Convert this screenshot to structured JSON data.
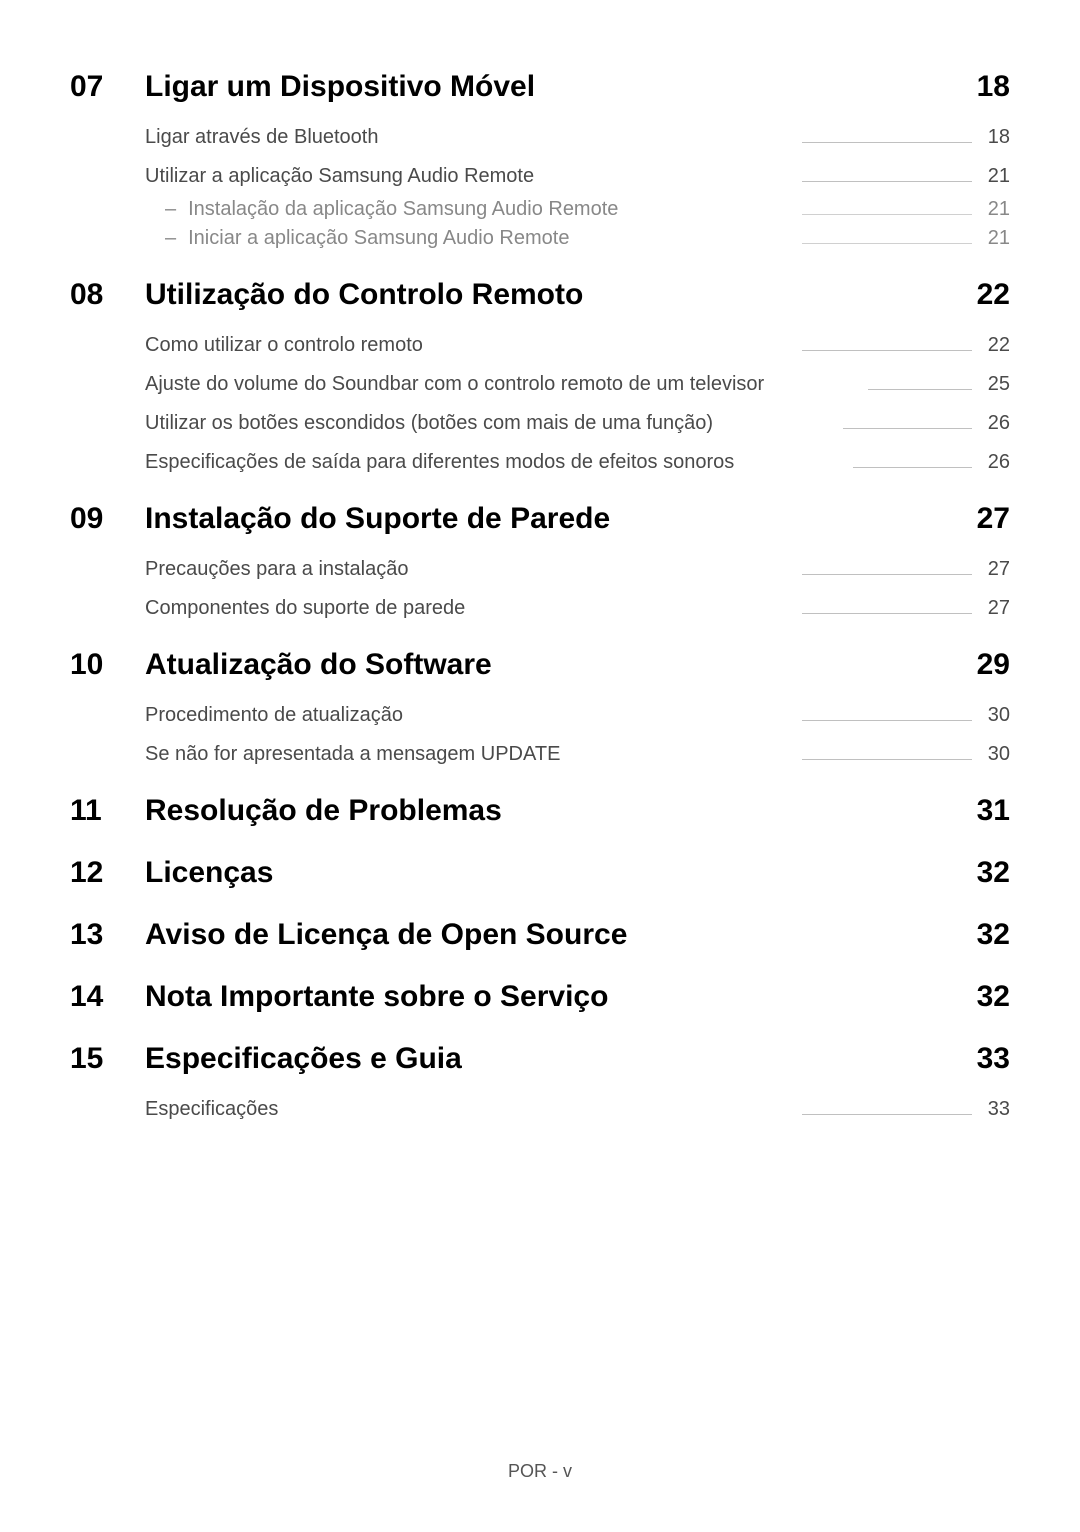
{
  "footer": "POR - v",
  "colors": {
    "background": "#ffffff",
    "text_main": "#000000",
    "text_sub": "#4a4a4a",
    "text_subsub": "#888888",
    "leader": "#c0c0c0"
  },
  "typography": {
    "section_fontsize": 30,
    "sub_fontsize": 20,
    "footer_fontsize": 18,
    "section_weight": 700
  },
  "sections": [
    {
      "number": "07",
      "title": "Ligar um Dispositivo Móvel",
      "page": "18",
      "subs": [
        {
          "type": "group",
          "items": [
            {
              "text": "Ligar através de Bluetooth",
              "page": "18",
              "level": 1
            }
          ]
        },
        {
          "type": "group",
          "items": [
            {
              "text": "Utilizar a aplicação Samsung Audio Remote",
              "page": "21",
              "level": 1
            },
            {
              "text": "Instalação da aplicação Samsung Audio Remote",
              "page": "21",
              "level": 2
            },
            {
              "text": "Iniciar a aplicação Samsung Audio Remote",
              "page": "21",
              "level": 2
            }
          ]
        }
      ]
    },
    {
      "number": "08",
      "title": "Utilização do Controlo Remoto",
      "page": "22",
      "subs": [
        {
          "type": "group",
          "items": [
            {
              "text": "Como utilizar o controlo remoto",
              "page": "22",
              "level": 1
            }
          ]
        },
        {
          "type": "group",
          "items": [
            {
              "text": "Ajuste do volume do Soundbar com o controlo remoto de um televisor",
              "page": "25",
              "level": 1
            }
          ]
        },
        {
          "type": "group",
          "items": [
            {
              "text": "Utilizar os botões escondidos (botões com mais de uma função)",
              "page": "26",
              "level": 1
            }
          ]
        },
        {
          "type": "group",
          "items": [
            {
              "text": "Especificações de saída para diferentes modos de efeitos sonoros",
              "page": "26",
              "level": 1
            }
          ]
        }
      ]
    },
    {
      "number": "09",
      "title": "Instalação do Suporte de Parede",
      "page": "27",
      "subs": [
        {
          "type": "group",
          "items": [
            {
              "text": "Precauções para a instalação",
              "page": "27",
              "level": 1
            }
          ]
        },
        {
          "type": "group",
          "items": [
            {
              "text": "Componentes do suporte de parede",
              "page": "27",
              "level": 1
            }
          ]
        }
      ]
    },
    {
      "number": "10",
      "title": "Atualização do Software",
      "page": "29",
      "subs": [
        {
          "type": "group",
          "items": [
            {
              "text": "Procedimento de atualização",
              "page": "30",
              "level": 1
            }
          ]
        },
        {
          "type": "group",
          "items": [
            {
              "text": "Se não for apresentada a mensagem UPDATE",
              "page": "30",
              "level": 1
            }
          ]
        }
      ]
    },
    {
      "number": "11",
      "title": "Resolução de Problemas",
      "page": "31",
      "subs": []
    },
    {
      "number": "12",
      "title": "Licenças",
      "page": "32",
      "subs": []
    },
    {
      "number": "13",
      "title": "Aviso de Licença de Open Source",
      "page": "32",
      "subs": []
    },
    {
      "number": "14",
      "title": "Nota Importante sobre o Serviço",
      "page": "32",
      "subs": []
    },
    {
      "number": "15",
      "title": "Especificações e Guia",
      "page": "33",
      "subs": [
        {
          "type": "group",
          "items": [
            {
              "text": "Especificações",
              "page": "33",
              "level": 1
            }
          ]
        }
      ]
    }
  ]
}
